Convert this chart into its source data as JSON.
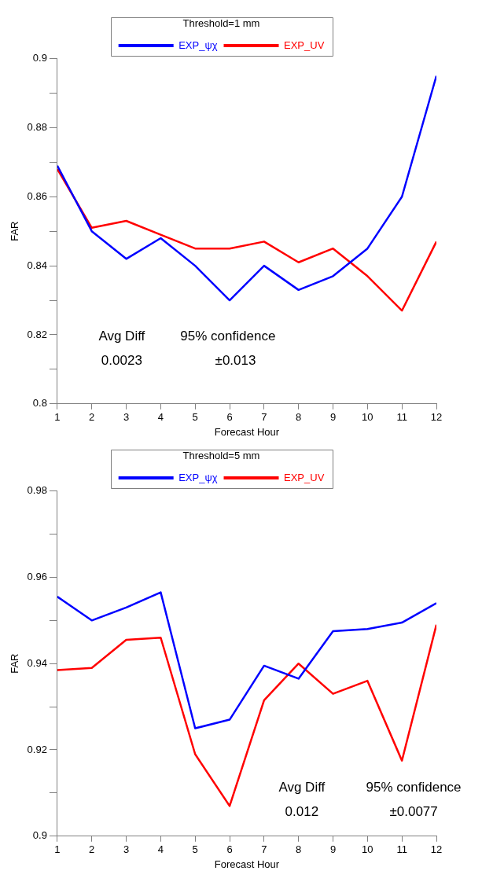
{
  "chart_data": [
    {
      "type": "line",
      "legend_title": "Threshold=1 mm",
      "xlabel": "Forecast Hour",
      "ylabel": "FAR",
      "x": [
        1,
        2,
        3,
        4,
        5,
        6,
        7,
        8,
        9,
        10,
        11,
        12
      ],
      "xlim": [
        1,
        12
      ],
      "xticks": [
        1,
        2,
        3,
        4,
        5,
        6,
        7,
        8,
        9,
        10,
        11,
        12
      ],
      "ylim": [
        0.8,
        0.9
      ],
      "yticks": [
        0.8,
        {
          "value": 0.81,
          "label": null
        },
        0.82,
        {
          "value": 0.83,
          "label": null
        },
        0.84,
        {
          "value": 0.85,
          "label": null
        },
        0.86,
        {
          "value": 0.87,
          "label": null
        },
        0.88,
        {
          "value": 0.89,
          "label": null
        },
        0.9
      ],
      "series": [
        {
          "name": "EXP_ψχ",
          "color": "#0000ff",
          "values": [
            0.869,
            0.85,
            0.842,
            0.848,
            0.84,
            0.83,
            0.84,
            0.833,
            0.837,
            0.845,
            0.86,
            0.895
          ]
        },
        {
          "name": "EXP_UV",
          "color": "#ff0000",
          "values": [
            0.868,
            0.851,
            0.853,
            0.849,
            0.845,
            0.845,
            0.847,
            0.841,
            0.845,
            0.837,
            0.827,
            0.847
          ]
        }
      ],
      "legend": "top",
      "grid": false,
      "marker": "none",
      "line_style": "solid",
      "annotations": [
        "Avg Diff",
        "95% confidence",
        "0.0023",
        "±0.013"
      ]
    },
    {
      "type": "line",
      "legend_title": "Threshold=5 mm",
      "xlabel": "Forecast Hour",
      "ylabel": "FAR",
      "x": [
        1,
        2,
        3,
        4,
        5,
        6,
        7,
        8,
        9,
        10,
        11,
        12
      ],
      "xlim": [
        1,
        12
      ],
      "xticks": [
        1,
        2,
        3,
        4,
        5,
        6,
        7,
        8,
        9,
        10,
        11,
        12
      ],
      "ylim": [
        0.9,
        0.98
      ],
      "yticks": [
        0.9,
        {
          "value": 0.91,
          "label": null
        },
        0.92,
        {
          "value": 0.93,
          "label": null
        },
        0.94,
        {
          "value": 0.95,
          "label": null
        },
        0.96,
        {
          "value": 0.97,
          "label": null
        },
        0.98
      ],
      "series": [
        {
          "name": "EXP_ψχ",
          "color": "#0000ff",
          "values": [
            0.9555,
            0.95,
            0.953,
            0.9565,
            0.925,
            0.927,
            0.9395,
            0.9365,
            0.9475,
            0.948,
            0.9495,
            0.954
          ]
        },
        {
          "name": "EXP_UV",
          "color": "#ff0000",
          "values": [
            0.9385,
            0.939,
            0.9455,
            0.946,
            0.919,
            0.907,
            0.9315,
            0.94,
            0.933,
            0.936,
            0.9175,
            0.949
          ]
        }
      ],
      "legend": "top",
      "grid": false,
      "marker": "none",
      "line_style": "solid",
      "annotations": [
        "Avg Diff",
        "95% confidence",
        "0.012",
        "±0.0077"
      ]
    }
  ]
}
